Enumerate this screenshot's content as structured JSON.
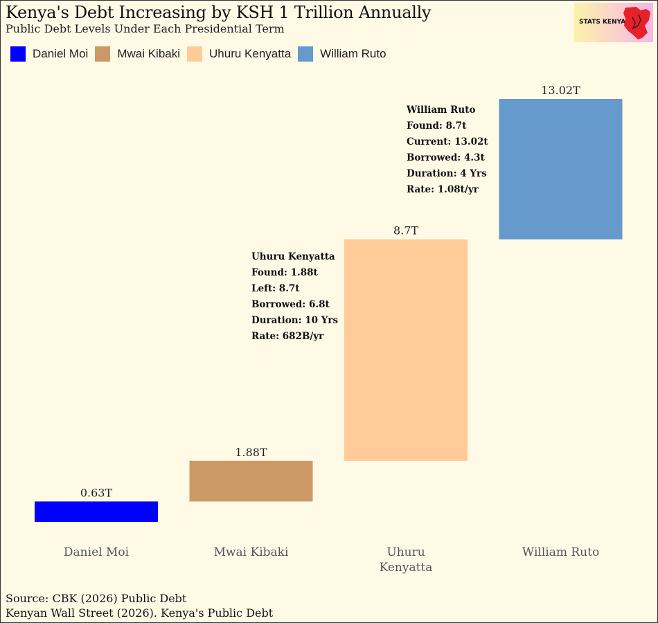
{
  "header": {
    "title": "Kenya's Debt Increasing by KSH 1 Trillion Annually",
    "subtitle": "Public Debt Levels Under Each Presidential Term"
  },
  "logo": {
    "text": "STATS KENYA",
    "icon": "kenya-map-icon",
    "color": "#e8202a"
  },
  "source": {
    "line1": "Source: CBK (2026) Public Debt",
    "line2": "Kenyan Wall Street (2026). Kenya's Public Debt"
  },
  "chart_data": {
    "type": "bar",
    "subtype": "floating-waterfall",
    "title": "Kenya's Debt Increasing by KSH 1 Trillion Annually",
    "subtitle": "Public Debt Levels Under Each Presidential Term",
    "unit": "T",
    "grid": false,
    "legend": "top-left",
    "categories": [
      "Daniel Moi",
      "Mwai Kibaki",
      "Uhuru Kenyatta",
      "William Ruto"
    ],
    "category_lines": [
      [
        "Daniel Moi"
      ],
      [
        "Mwai Kibaki"
      ],
      [
        "Uhuru",
        "Kenyatta"
      ],
      [
        "William Ruto"
      ]
    ],
    "series": [
      {
        "name": "Daniel Moi",
        "color": "#0000ff",
        "start": 0,
        "end": 0.63,
        "value_label": "0.63T"
      },
      {
        "name": "Mwai Kibaki",
        "color": "#cc9966",
        "start": 0.63,
        "end": 1.88,
        "value_label": "1.88T"
      },
      {
        "name": "Uhuru Kenyatta",
        "color": "#ffcc99",
        "start": 1.88,
        "end": 8.7,
        "value_label": "8.7T"
      },
      {
        "name": "William Ruto",
        "color": "#6699cc",
        "start": 8.7,
        "end": 13.02,
        "value_label": "13.02T"
      }
    ],
    "ylim": [
      0,
      13.02
    ],
    "annotations": [
      {
        "category": "Uhuru Kenyatta",
        "lines": [
          "Uhuru Kenyatta",
          "Found: 1.88t",
          "Left: 8.7t",
          "Borrowed: 6.8t",
          "Duration: 10 Yrs",
          "Rate: 682B/yr"
        ]
      },
      {
        "category": "William Ruto",
        "lines": [
          "William Ruto",
          "Found: 8.7t",
          "Current: 13.02t",
          "Borrowed: 4.3t",
          "Duration: 4 Yrs",
          "Rate: 1.08t/yr"
        ]
      }
    ]
  }
}
